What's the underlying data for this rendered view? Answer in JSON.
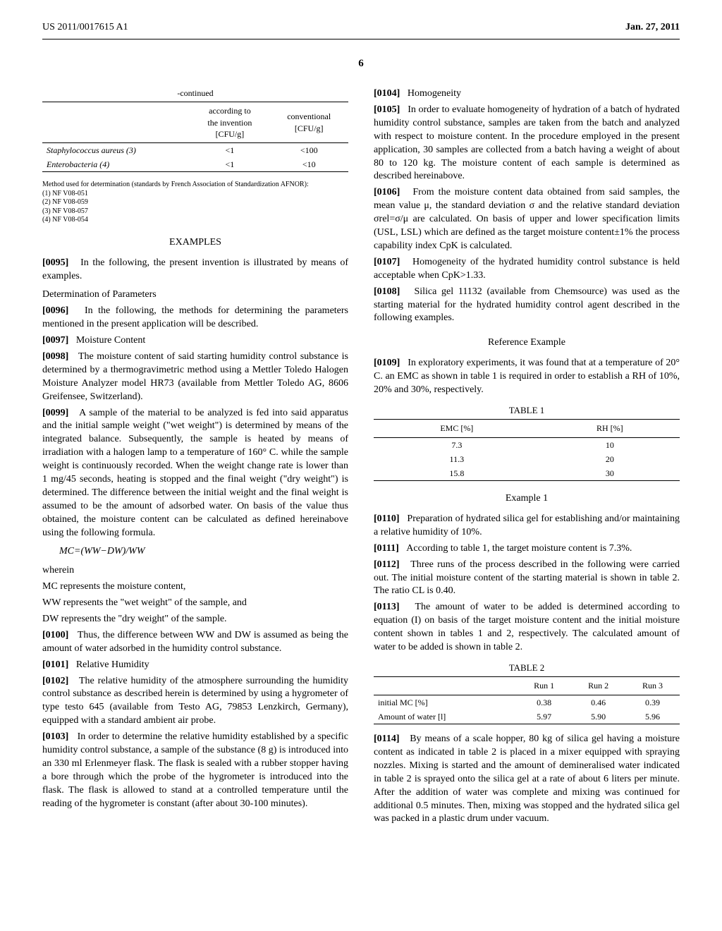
{
  "header": {
    "left": "US 2011/0017615 A1",
    "right": "Jan. 27, 2011"
  },
  "page_number": "6",
  "left_col": {
    "cont_table": {
      "title": "-continued",
      "col1_h1": "according to",
      "col1_h2": "the invention",
      "col1_h3": "[CFU/g]",
      "col2_h1": "conventional",
      "col2_h2": "[CFU/g]",
      "row1_name": "Staphylococcus aureus (3)",
      "row1_a": "<1",
      "row1_b": "<100",
      "row2_name": "Enterobacteria (4)",
      "row2_a": "<1",
      "row2_b": "<10",
      "foot1": "Method used for determination (standards by French Association of Standardization AFNOR):",
      "foot2": "(1) NF V08-051",
      "foot3": "(2) NF V08-059",
      "foot4": "(3) NF V08-057",
      "foot5": "(4) NF V08-054"
    },
    "examples_heading": "EXAMPLES",
    "p95": "In the following, the present invention is illustrated by means of examples.",
    "det_params": "Determination of Parameters",
    "p96": "In the following, the methods for determining the parameters mentioned in the present application will be described.",
    "p97": "Moisture Content",
    "p98": "The moisture content of said starting humidity control substance is determined by a thermogravimetric method using a Mettler Toledo Halogen Moisture Analyzer model HR73 (available from Mettler Toledo AG, 8606 Greifensee, Switzerland).",
    "p99": "A sample of the material to be analyzed is fed into said apparatus and the initial sample weight (\"wet weight\") is determined by means of the integrated balance. Subsequently, the sample is heated by means of irradiation with a halogen lamp to a temperature of 160° C. while the sample weight is continuously recorded. When the weight change rate is lower than 1 mg/45 seconds, heating is stopped and the final weight (\"dry weight\") is determined. The difference between the initial weight and the final weight is assumed to be the amount of adsorbed water. On basis of the value thus obtained, the moisture content can be calculated as defined hereinabove using the following formula.",
    "formula": "MC=(WW−DW)/WW",
    "wherein": "wherein",
    "mc_line": "MC represents the moisture content,",
    "ww_line": "WW represents the \"wet weight\" of the sample, and",
    "dw_line": "DW represents the \"dry weight\" of the sample.",
    "p100": "Thus, the difference between WW and DW is assumed as being the amount of water adsorbed in the humidity control substance.",
    "p101": "Relative Humidity",
    "p102": "The relative humidity of the atmosphere surrounding the humidity control substance as described herein is determined by using a hygrometer of type testo 645 (available from Testo AG, 79853 Lenzkirch, Germany), equipped with a standard ambient air probe.",
    "p103": "In order to determine the relative humidity established by a specific humidity control substance, a sample of the substance (8 g) is introduced into an 330 ml Erlenmeyer flask. The flask is sealed with a rubber stopper having a bore through which the probe of the hygrometer is introduced into the flask. The flask is allowed to stand at a controlled temperature until the reading of the hygrometer is constant (after about 30-100 minutes)."
  },
  "right_col": {
    "p104": "Homogeneity",
    "p105": "In order to evaluate homogeneity of hydration of a batch of hydrated humidity control substance, samples are taken from the batch and analyzed with respect to moisture content. In the procedure employed in the present application, 30 samples are collected from a batch having a weight of about 80 to 120 kg. The moisture content of each sample is determined as described hereinabove.",
    "p106": "From the moisture content data obtained from said samples, the mean value μ, the standard deviation σ and the relative standard deviation σrel=σ/μ are calculated. On basis of upper and lower specification limits (USL, LSL) which are defined as the target moisture content±1% the process capability index CpK is calculated.",
    "p107": "Homogeneity of the hydrated humidity control substance is held acceptable when CpK>1.33.",
    "p108": "Silica gel 11132 (available from Chemsource) was used as the starting material for the hydrated humidity control agent described in the following examples.",
    "ref_example": "Reference Example",
    "p109": "In exploratory experiments, it was found that at a temperature of 20° C. an EMC as shown in table 1 is required in order to establish a RH of 10%, 20% and 30%, respectively.",
    "table1": {
      "title": "TABLE 1",
      "colA": "EMC [%]",
      "colB": "RH [%]",
      "r1a": "7.3",
      "r1b": "10",
      "r2a": "11.3",
      "r2b": "20",
      "r3a": "15.8",
      "r3b": "30"
    },
    "example1": "Example 1",
    "p110": "Preparation of hydrated silica gel for establishing and/or maintaining a relative humidity of 10%.",
    "p111": "According to table 1, the target moisture content is 7.3%.",
    "p112": "Three runs of the process described in the following were carried out. The initial moisture content of the starting material is shown in table 2. The ratio CL is 0.40.",
    "p113": "The amount of water to be added is determined according to equation (I) on basis of the target moisture content and the initial moisture content shown in tables 1 and 2, respectively. The calculated amount of water to be added is shown in table 2.",
    "table2": {
      "title": "TABLE 2",
      "c1": "Run 1",
      "c2": "Run 2",
      "c3": "Run 3",
      "r1name": "initial MC [%]",
      "r1a": "0.38",
      "r1b": "0.46",
      "r1c": "0.39",
      "r2name": "Amount of water [l]",
      "r2a": "5.97",
      "r2b": "5.90",
      "r2c": "5.96"
    },
    "p114": "By means of a scale hopper, 80 kg of silica gel having a moisture content as indicated in table 2 is placed in a mixer equipped with spraying nozzles. Mixing is started and the amount of demineralised water indicated in table 2 is sprayed onto the silica gel at a rate of about 6 liters per minute. After the addition of water was complete and mixing was continued for additional 0.5 minutes. Then, mixing was stopped and the hydrated silica gel was packed in a plastic drum under vacuum."
  }
}
